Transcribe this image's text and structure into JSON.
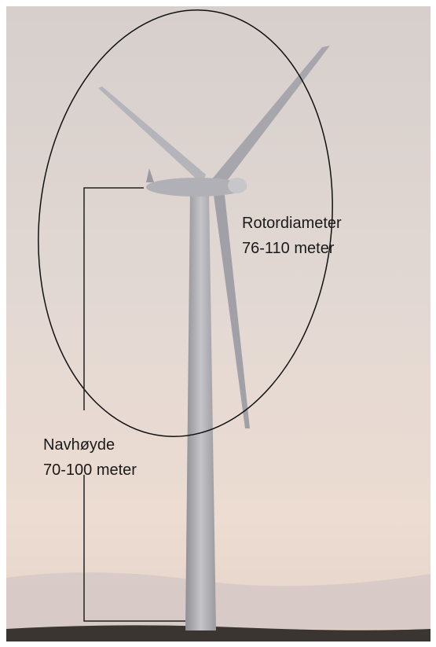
{
  "annotations": [
    {
      "label": "Rotordiameter",
      "value": "76-110 meter"
    },
    {
      "label": "Navhøyde",
      "value": "70-100 meter"
    }
  ]
}
